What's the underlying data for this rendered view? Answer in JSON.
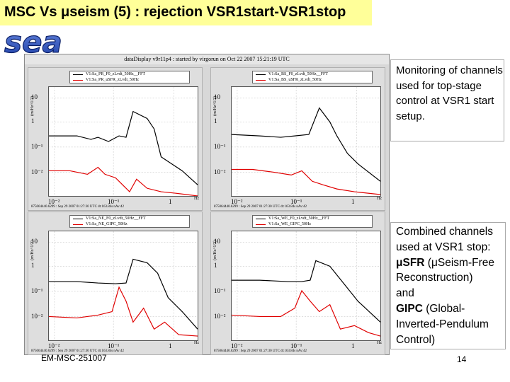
{
  "header": {
    "title": "MSC Vs μseism (5) : rejection VSR1start-VSR1stop"
  },
  "logo": {
    "text": "sea"
  },
  "window": {
    "title": "dataDisplay v9r11p4 : started by virgorun on Oct 22 2007 15:21:19 UTC"
  },
  "panels": [
    {
      "legend_black": "V1:Sa_PR_F0_zLvdt_50Hz__FFT",
      "legend_red": "V1:Sa_PR_uSFR_zLvdt_50Hz",
      "ylabel": "(m/Hz^1/2)",
      "footer": "875064440.6299 : Sep 29 2007 01:27:30 UTC dt:163.84s nAv:42"
    },
    {
      "legend_black": "V1:Sa_BS_F0_zLvdt_50Hz__FFT",
      "legend_red": "V1:Sa_BS_uSFR_zLvdt_50Hz",
      "ylabel": "(m/Hz^1/2)",
      "footer": "875064440.6299 : Sep 29 2007 01:27:30 UTC dt:163.84s nAv:42"
    },
    {
      "legend_black": "V1:Sa_NE_F0_zLvdt_50Hz__FFT",
      "legend_red": "V1:Sa_NE_GIPC_50Hz",
      "ylabel": "(m/Hz^1/2)",
      "footer": "875064440.6299 : Sep 29 2007 01:27:30 UTC dt:163.84s nAv:42"
    },
    {
      "legend_black": "V1:Sa_WE_F0_zLvdt_50Hz__FFT",
      "legend_red": "V1:Sa_WE_GIPC_50Hz",
      "ylabel": "(m/Hz^1/2)",
      "footer": "875064440.6299 : Sep 29 2007 01:27:30 UTC dt:163.84s nAv:42"
    }
  ],
  "axis": {
    "y_ticks": [
      "10",
      "1",
      "10⁻¹",
      "10⁻²"
    ],
    "x_ticks": [
      "10⁻²",
      "10⁻¹",
      "1"
    ],
    "x_unit": "Hz"
  },
  "note1": {
    "text": "Monitoring of channels used for top-stage control at VSR1 start setup."
  },
  "note2": {
    "line1": "Combined channels used at VSR1 stop:",
    "sfr": "μSFR",
    "sfr_desc": "(μSeism-Free Reconstruction)",
    "and": "and",
    "gipc": "GIPC",
    "gipc_desc": "(Global-Inverted-Pendulum Control)"
  },
  "footer": {
    "code": "EM-MSC-251007",
    "page": "14"
  },
  "colors": {
    "title_band": "#ffff99",
    "red_trace": "#e00000",
    "black_trace": "#000000"
  }
}
